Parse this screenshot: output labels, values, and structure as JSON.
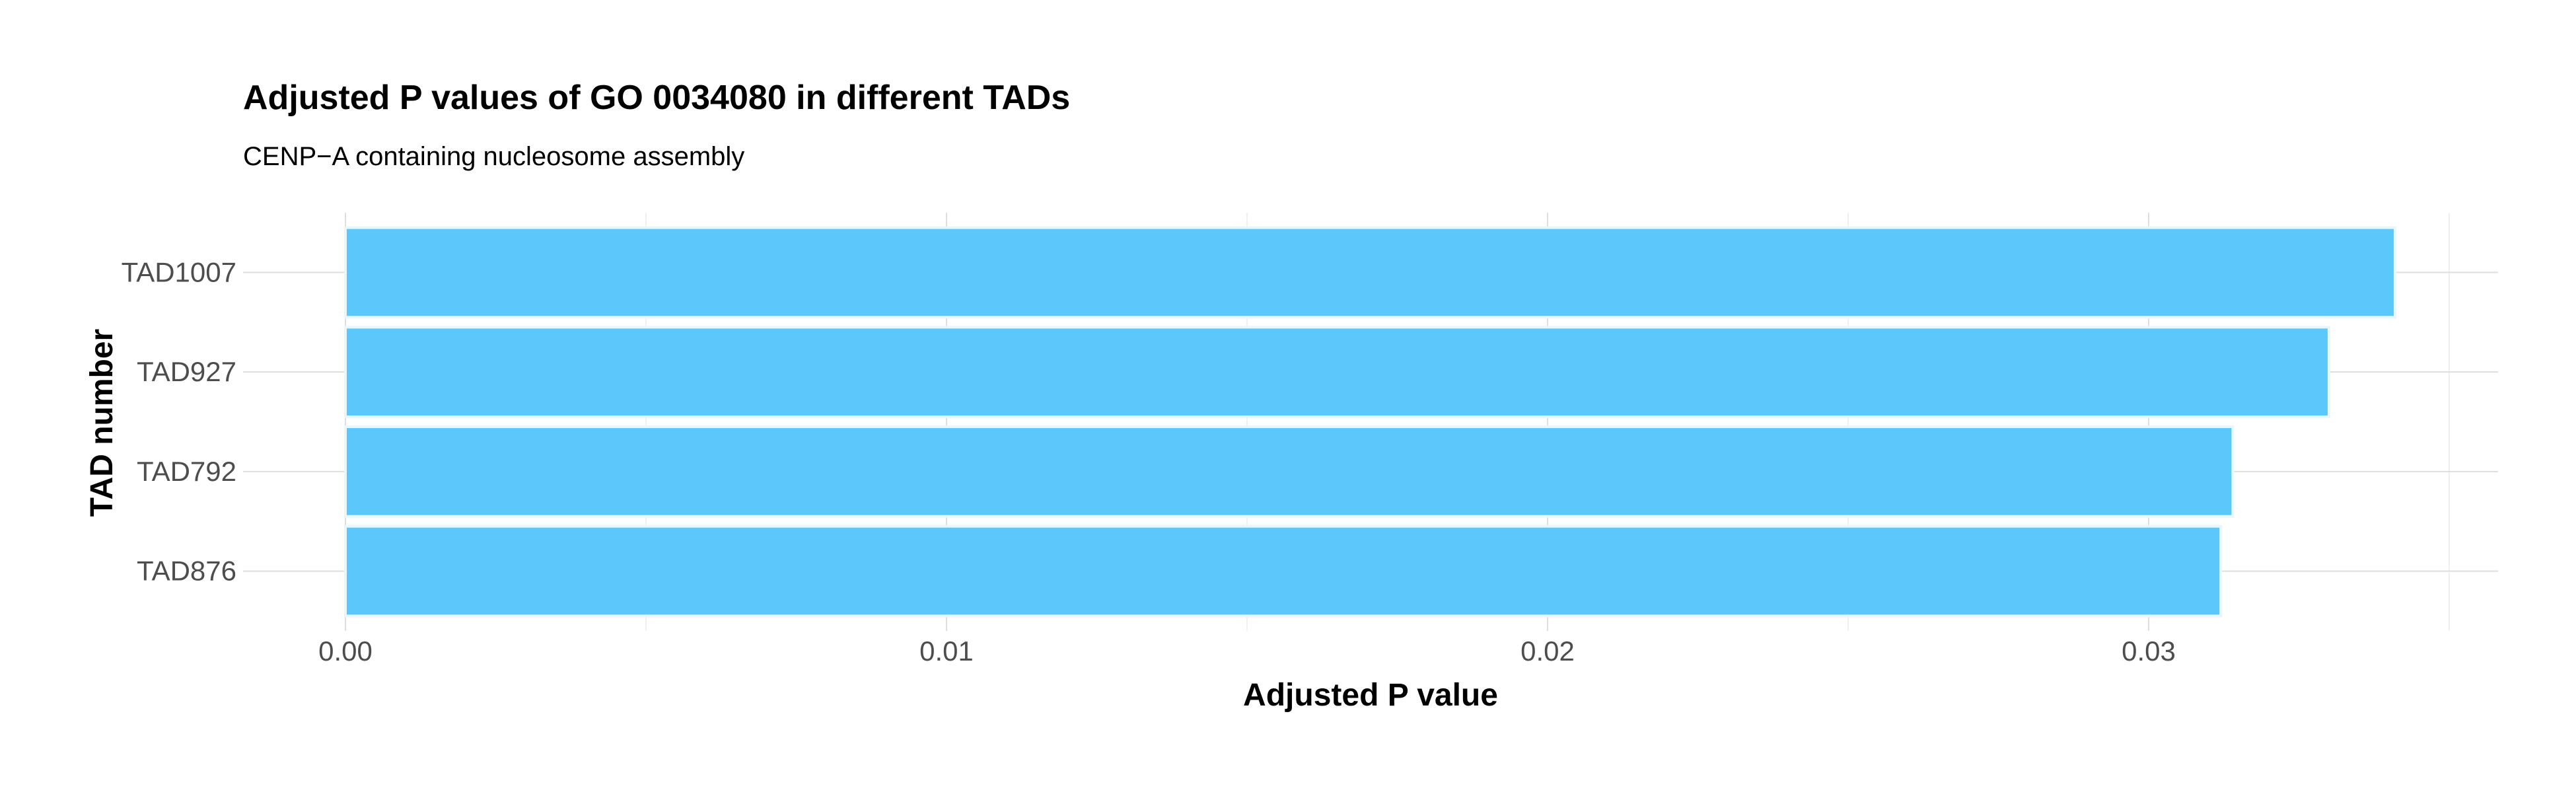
{
  "chart_data": {
    "type": "bar",
    "orientation": "horizontal",
    "title": "Adjusted P values of GO 0034080 in different TADs",
    "subtitle": "CENP−A containing nucleosome assembly",
    "xlabel": "Adjusted P value",
    "ylabel": "TAD number",
    "categories": [
      "TAD1007",
      "TAD927",
      "TAD792",
      "TAD876"
    ],
    "values": [
      0.0341,
      0.033,
      0.0314,
      0.0312
    ],
    "xlim": [
      0,
      0.035
    ],
    "xticks": [
      0.0,
      0.01,
      0.02,
      0.03
    ],
    "xtick_labels": [
      "0.00",
      "0.01",
      "0.02",
      "0.03"
    ],
    "grid": true,
    "legend": "none",
    "colors": {
      "bar_fill": "#5bc8fb",
      "bar_outline": "#e8f6fd",
      "grid": "#dedede",
      "tick_text": "#4d4d4d",
      "background": "#ffffff"
    }
  }
}
